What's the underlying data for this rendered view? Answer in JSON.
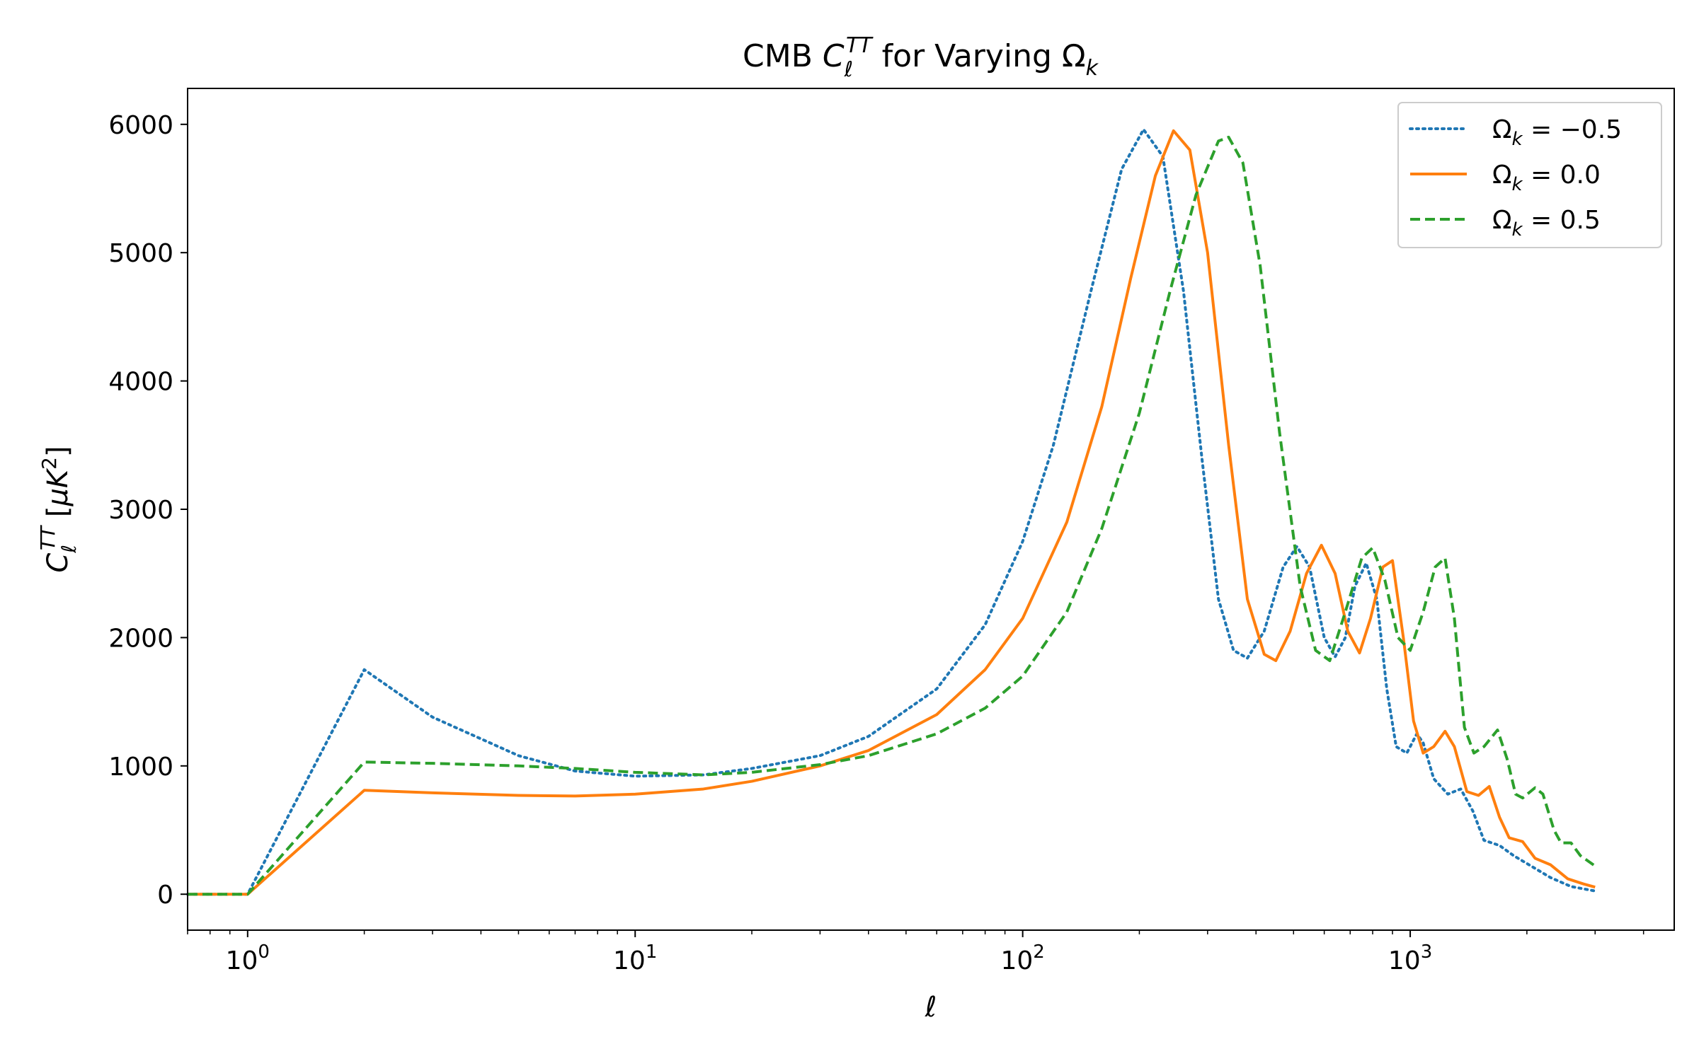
{
  "chart_data": {
    "type": "line",
    "title": {
      "prefix": "CMB ",
      "symbol": "C",
      "sub": "ℓ",
      "sup": "TT",
      "middle": " for Varying ",
      "greek": "Ω",
      "greek_sub": "k"
    },
    "xlabel": "ℓ",
    "ylabel": {
      "symbol": "C",
      "sub": "ℓ",
      "sup": "TT",
      "unit_open": " [",
      "mu": "μ",
      "K": "K",
      "exp": "2",
      "unit_close": "]"
    },
    "xscale": "log",
    "xlim": [
      0.7,
      4800
    ],
    "ylim": [
      -280,
      6280
    ],
    "x_ticks": [
      {
        "value": 1,
        "base": "10",
        "exp": "0"
      },
      {
        "value": 10,
        "base": "10",
        "exp": "1"
      },
      {
        "value": 100,
        "base": "10",
        "exp": "2"
      },
      {
        "value": 1000,
        "base": "10",
        "exp": "3"
      }
    ],
    "y_ticks": [
      {
        "value": 0,
        "label": "0"
      },
      {
        "value": 1000,
        "label": "1000"
      },
      {
        "value": 2000,
        "label": "2000"
      },
      {
        "value": 3000,
        "label": "3000"
      },
      {
        "value": 4000,
        "label": "4000"
      },
      {
        "value": 5000,
        "label": "5000"
      },
      {
        "value": 6000,
        "label": "6000"
      }
    ],
    "grid": false,
    "legend_position": "top-right",
    "series": [
      {
        "name": "Ωk = −0.5",
        "legend": {
          "greek": "Ω",
          "sub": "k",
          "text": " = −0.5"
        },
        "color": "#1f77b4",
        "style": "dotted",
        "points": [
          [
            0.7,
            0
          ],
          [
            1,
            0
          ],
          [
            2,
            1750
          ],
          [
            3,
            1380
          ],
          [
            5,
            1080
          ],
          [
            7,
            960
          ],
          [
            10,
            920
          ],
          [
            15,
            930
          ],
          [
            20,
            980
          ],
          [
            30,
            1080
          ],
          [
            40,
            1230
          ],
          [
            60,
            1600
          ],
          [
            80,
            2100
          ],
          [
            100,
            2750
          ],
          [
            120,
            3500
          ],
          [
            150,
            4700
          ],
          [
            180,
            5650
          ],
          [
            205,
            5960
          ],
          [
            230,
            5750
          ],
          [
            260,
            4700
          ],
          [
            290,
            3400
          ],
          [
            320,
            2300
          ],
          [
            350,
            1900
          ],
          [
            380,
            1840
          ],
          [
            420,
            2050
          ],
          [
            470,
            2550
          ],
          [
            510,
            2710
          ],
          [
            550,
            2550
          ],
          [
            600,
            2000
          ],
          [
            640,
            1850
          ],
          [
            680,
            2000
          ],
          [
            720,
            2400
          ],
          [
            770,
            2580
          ],
          [
            820,
            2300
          ],
          [
            870,
            1600
          ],
          [
            920,
            1150
          ],
          [
            980,
            1100
          ],
          [
            1040,
            1250
          ],
          [
            1080,
            1180
          ],
          [
            1150,
            900
          ],
          [
            1250,
            780
          ],
          [
            1350,
            820
          ],
          [
            1450,
            650
          ],
          [
            1550,
            420
          ],
          [
            1700,
            380
          ],
          [
            1850,
            300
          ],
          [
            2050,
            220
          ],
          [
            2300,
            130
          ],
          [
            2600,
            60
          ],
          [
            3000,
            25
          ]
        ]
      },
      {
        "name": "Ωk = 0.0",
        "legend": {
          "greek": "Ω",
          "sub": "k",
          "text": " = 0.0"
        },
        "color": "#ff7f0e",
        "style": "solid",
        "points": [
          [
            0.7,
            0
          ],
          [
            1,
            0
          ],
          [
            2,
            810
          ],
          [
            3,
            790
          ],
          [
            5,
            770
          ],
          [
            7,
            765
          ],
          [
            10,
            780
          ],
          [
            15,
            820
          ],
          [
            20,
            880
          ],
          [
            30,
            1000
          ],
          [
            40,
            1120
          ],
          [
            60,
            1400
          ],
          [
            80,
            1750
          ],
          [
            100,
            2150
          ],
          [
            130,
            2900
          ],
          [
            160,
            3800
          ],
          [
            190,
            4800
          ],
          [
            220,
            5600
          ],
          [
            245,
            5950
          ],
          [
            270,
            5800
          ],
          [
            300,
            5000
          ],
          [
            340,
            3500
          ],
          [
            380,
            2300
          ],
          [
            420,
            1870
          ],
          [
            450,
            1820
          ],
          [
            490,
            2050
          ],
          [
            540,
            2500
          ],
          [
            590,
            2720
          ],
          [
            640,
            2500
          ],
          [
            690,
            2050
          ],
          [
            740,
            1880
          ],
          [
            790,
            2150
          ],
          [
            850,
            2550
          ],
          [
            900,
            2600
          ],
          [
            960,
            2000
          ],
          [
            1020,
            1350
          ],
          [
            1080,
            1100
          ],
          [
            1150,
            1150
          ],
          [
            1230,
            1270
          ],
          [
            1300,
            1150
          ],
          [
            1400,
            800
          ],
          [
            1500,
            770
          ],
          [
            1600,
            840
          ],
          [
            1700,
            600
          ],
          [
            1800,
            440
          ],
          [
            1950,
            410
          ],
          [
            2100,
            280
          ],
          [
            2300,
            230
          ],
          [
            2550,
            120
          ],
          [
            2800,
            80
          ],
          [
            3000,
            55
          ]
        ]
      },
      {
        "name": "Ωk = 0.5",
        "legend": {
          "greek": "Ω",
          "sub": "k",
          "text": " = 0.5"
        },
        "color": "#2ca02c",
        "style": "dashed",
        "points": [
          [
            0.7,
            0
          ],
          [
            1,
            0
          ],
          [
            2,
            1030
          ],
          [
            3,
            1020
          ],
          [
            5,
            1000
          ],
          [
            7,
            980
          ],
          [
            10,
            950
          ],
          [
            15,
            930
          ],
          [
            20,
            950
          ],
          [
            30,
            1010
          ],
          [
            40,
            1080
          ],
          [
            60,
            1250
          ],
          [
            80,
            1450
          ],
          [
            100,
            1700
          ],
          [
            130,
            2200
          ],
          [
            160,
            2850
          ],
          [
            200,
            3750
          ],
          [
            240,
            4700
          ],
          [
            280,
            5450
          ],
          [
            320,
            5870
          ],
          [
            340,
            5900
          ],
          [
            370,
            5700
          ],
          [
            410,
            4900
          ],
          [
            460,
            3600
          ],
          [
            520,
            2400
          ],
          [
            570,
            1900
          ],
          [
            620,
            1820
          ],
          [
            680,
            2200
          ],
          [
            750,
            2620
          ],
          [
            800,
            2700
          ],
          [
            860,
            2450
          ],
          [
            930,
            2000
          ],
          [
            1000,
            1900
          ],
          [
            1080,
            2200
          ],
          [
            1160,
            2550
          ],
          [
            1230,
            2620
          ],
          [
            1300,
            2150
          ],
          [
            1380,
            1300
          ],
          [
            1460,
            1100
          ],
          [
            1550,
            1150
          ],
          [
            1680,
            1280
          ],
          [
            1780,
            1050
          ],
          [
            1870,
            780
          ],
          [
            1950,
            750
          ],
          [
            2100,
            830
          ],
          [
            2200,
            780
          ],
          [
            2350,
            500
          ],
          [
            2450,
            400
          ],
          [
            2600,
            400
          ],
          [
            2750,
            300
          ],
          [
            3000,
            220
          ]
        ]
      }
    ]
  }
}
